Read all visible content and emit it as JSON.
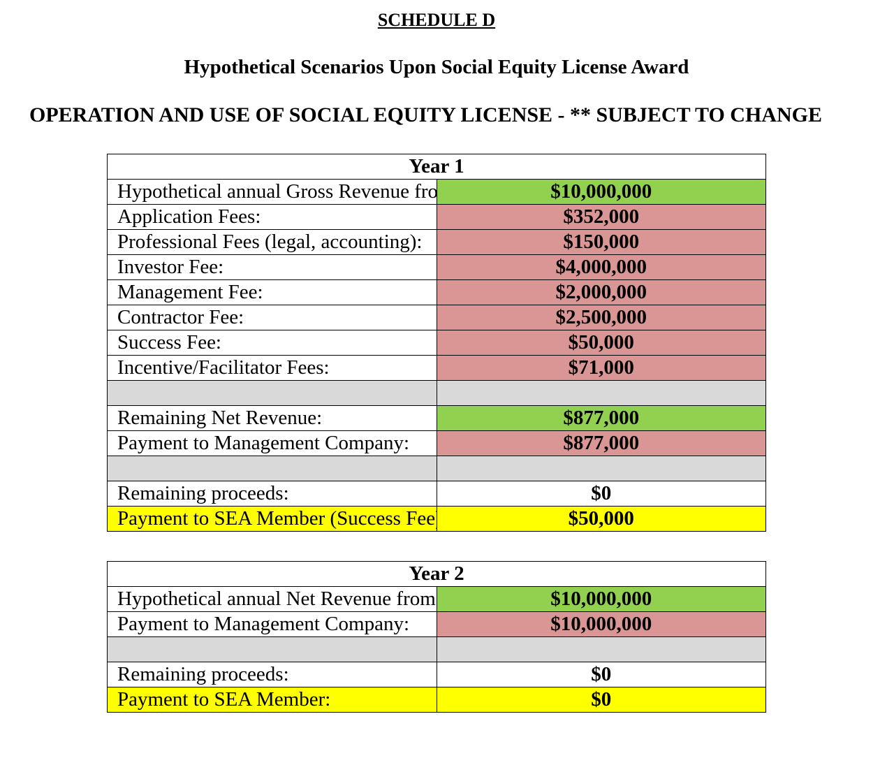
{
  "header": {
    "schedule": "SCHEDULE D",
    "subtitle": "Hypothetical Scenarios Upon Social Equity License Award",
    "heading": "OPERATION AND USE OF SOCIAL EQUITY LICENSE - ** SUBJECT TO CHANGE"
  },
  "tables": [
    {
      "title": "Year 1",
      "rows": [
        {
          "label": "Hypothetical annual Gross Revenue from operation:",
          "value": "$10,000,000",
          "fill": "#92d050"
        },
        {
          "label": "Application Fees:",
          "value": "$352,000",
          "fill": "#d99694"
        },
        {
          "label": "Professional Fees (legal, accounting):",
          "value": "$150,000",
          "fill": "#d99694"
        },
        {
          "label": "Investor Fee:",
          "value": "$4,000,000",
          "fill": "#d99694"
        },
        {
          "label": "Management Fee:",
          "value": "$2,000,000",
          "fill": "#d99694"
        },
        {
          "label": "Contractor Fee:",
          "value": "$2,500,000",
          "fill": "#d99694"
        },
        {
          "label": "Success Fee:",
          "value": "$50,000",
          "fill": "#d99694"
        },
        {
          "label": "Incentive/Facilitator Fees:",
          "value": "$71,000",
          "fill": "#d99694"
        },
        {
          "fill": "#d9d9d9",
          "row_fill": "#d9d9d9"
        },
        {
          "label": "Remaining Net Revenue:",
          "value": "$877,000",
          "fill": "#92d050"
        },
        {
          "label": "Payment to Management Company:",
          "value": "$877,000",
          "fill": "#d99694"
        },
        {
          "fill": "#d9d9d9",
          "row_fill": "#d9d9d9"
        },
        {
          "label": "Remaining proceeds:",
          "value": "$0",
          "fill": "#ffffff"
        },
        {
          "label": "Payment to SEA Member (Success Fee):",
          "value": "$50,000",
          "fill": "#ffff00",
          "row_fill": "#ffff00"
        }
      ]
    },
    {
      "title": "Year 2",
      "rows": [
        {
          "label": "Hypothetical annual Net Revenue from operation:",
          "value": "$10,000,000",
          "fill": "#92d050"
        },
        {
          "label": "Payment to Management Company:",
          "value": "$10,000,000",
          "fill": "#d99694"
        },
        {
          "fill": "#d9d9d9",
          "row_fill": "#d9d9d9"
        },
        {
          "label": "Remaining proceeds:",
          "value": "$0",
          "fill": "#ffffff"
        },
        {
          "label": "Payment to SEA Member:",
          "value": "$0",
          "fill": "#ffff00",
          "row_fill": "#ffff00"
        }
      ]
    }
  ]
}
